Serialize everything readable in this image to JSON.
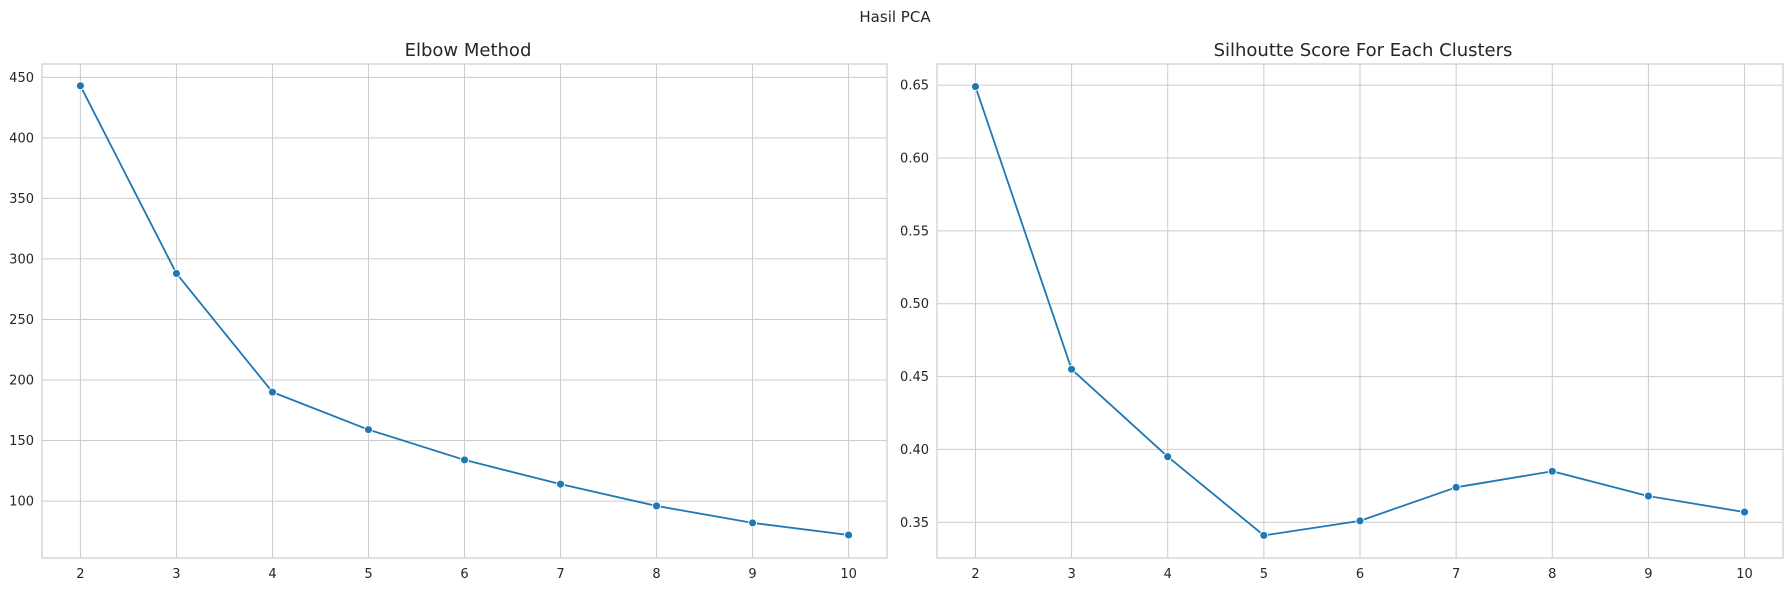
{
  "figure": {
    "suptitle": "Hasil PCA",
    "accent_color": "#1f77b4"
  },
  "chart_data": [
    {
      "type": "line",
      "title": "Elbow Method",
      "xlabel": "",
      "ylabel": "",
      "x": [
        2,
        3,
        4,
        5,
        6,
        7,
        8,
        9,
        10
      ],
      "series": [
        {
          "values": [
            443,
            288,
            190,
            159,
            134,
            114,
            96,
            82,
            72
          ]
        }
      ],
      "xlim": [
        1.6,
        10.4
      ],
      "ylim": [
        53,
        461
      ],
      "xticks": [
        2,
        3,
        4,
        5,
        6,
        7,
        8,
        9,
        10
      ],
      "yticks": [
        100,
        150,
        200,
        250,
        300,
        350,
        400,
        450
      ],
      "ytick_labels": [
        "100",
        "150",
        "200",
        "250",
        "300",
        "350",
        "400",
        "450"
      ],
      "grid": true,
      "marker": "circle",
      "color": "#1f77b4"
    },
    {
      "type": "line",
      "title": "Silhoutte Score For Each Clusters",
      "xlabel": "",
      "ylabel": "",
      "x": [
        2,
        3,
        4,
        5,
        6,
        7,
        8,
        9,
        10
      ],
      "series": [
        {
          "values": [
            0.649,
            0.455,
            0.395,
            0.341,
            0.351,
            0.374,
            0.385,
            0.368,
            0.357
          ]
        }
      ],
      "xlim": [
        1.6,
        10.4
      ],
      "ylim": [
        0.3255,
        0.6645
      ],
      "xticks": [
        2,
        3,
        4,
        5,
        6,
        7,
        8,
        9,
        10
      ],
      "yticks": [
        0.35,
        0.4,
        0.45,
        0.5,
        0.55,
        0.6,
        0.65
      ],
      "ytick_labels": [
        "0.35",
        "0.40",
        "0.45",
        "0.50",
        "0.55",
        "0.60",
        "0.65"
      ],
      "grid": true,
      "marker": "circle",
      "color": "#1f77b4"
    }
  ]
}
